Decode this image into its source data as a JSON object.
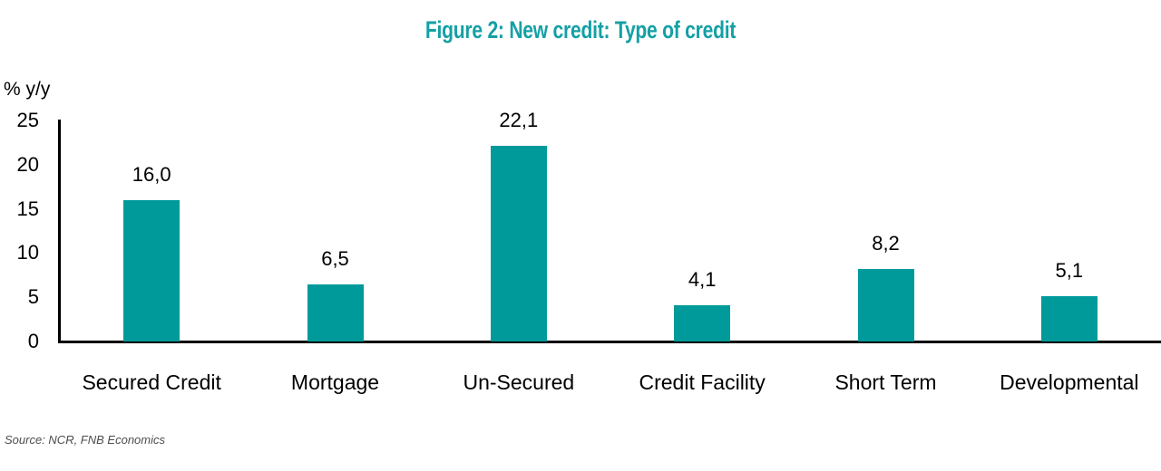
{
  "title": "Figure 2: New credit: Type of credit",
  "y_axis_unit_label": "% y/y",
  "source_note": "Source: NCR, FNB Economics",
  "colors": {
    "title": "#14A0A5",
    "bar": "#009A9B",
    "axis": "#000000",
    "text": "#000000",
    "source_text": "#4D4D4F"
  },
  "chart_data": {
    "type": "bar",
    "title": "Figure 2: New credit: Type of credit",
    "categories": [
      "Secured Credit",
      "Mortgage",
      "Un-Secured",
      "Credit Facility",
      "Short Term",
      "Developmental"
    ],
    "values": [
      16.0,
      6.5,
      22.1,
      4.1,
      8.2,
      5.1
    ],
    "value_labels": [
      "16,0",
      "6,5",
      "22,1",
      "4,1",
      "8,2",
      "5,1"
    ],
    "ylabel": "% y/y",
    "xlabel": "",
    "ylim": [
      0,
      25
    ],
    "yticks": [
      0,
      5,
      10,
      15,
      20,
      25
    ],
    "grid": false,
    "legend": "none",
    "decimal_separator": ","
  }
}
